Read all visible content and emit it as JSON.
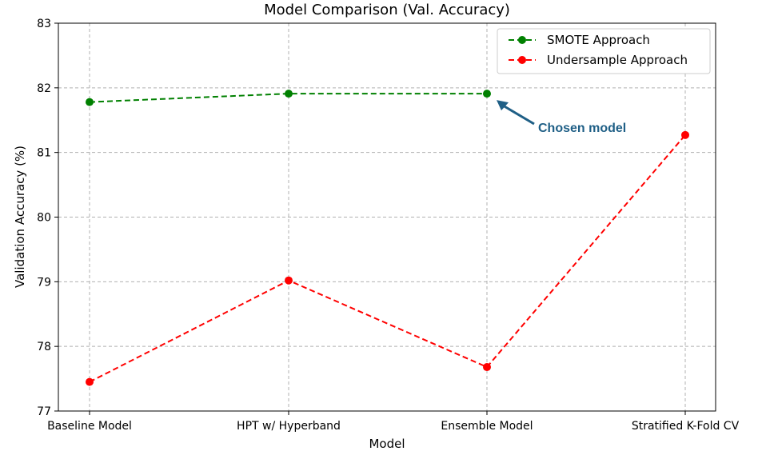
{
  "chart_data": {
    "type": "line",
    "title": "Model Comparison (Val. Accuracy)",
    "xlabel": "Model",
    "ylabel": "Validation Accuracy (%)",
    "categories": [
      "Baseline Model",
      "HPT w/ Hyperband",
      "Ensemble Model",
      "Stratified K-Fold CV"
    ],
    "ylim": [
      77,
      83
    ],
    "yticks": [
      77,
      78,
      79,
      80,
      81,
      82,
      83
    ],
    "grid": true,
    "legend_position": "top-right",
    "series": [
      {
        "name": "SMOTE Approach",
        "color": "#008000",
        "line_style": "dashed",
        "marker": "circle",
        "values": [
          81.78,
          81.91,
          81.91,
          null
        ]
      },
      {
        "name": "Undersample Approach",
        "color": "#ff0000",
        "line_style": "dashed",
        "marker": "circle",
        "values": [
          77.45,
          79.02,
          77.68,
          81.27
        ]
      }
    ],
    "annotations": [
      {
        "text": "Chosen model",
        "color": "#1f5f86",
        "target": {
          "category": "Ensemble Model",
          "value": 81.91
        }
      }
    ]
  }
}
